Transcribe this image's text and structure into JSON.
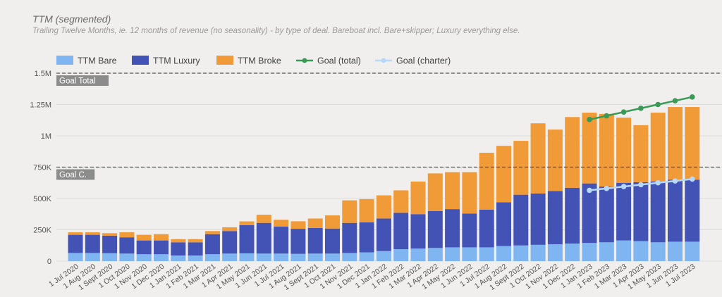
{
  "chart_data": {
    "type": "bar",
    "stacked": true,
    "title": "TTM (segmented)",
    "subtitle": "Trailing Twelve Months, ie. 12 months of revenue (no seasonality) - by type of deal. Bareboat incl. Bare+skipper; Luxury everything else.",
    "ylim": [
      0,
      1500000
    ],
    "yticks": [
      {
        "value": 0,
        "label": "0"
      },
      {
        "value": 250000,
        "label": "250K"
      },
      {
        "value": 500000,
        "label": "500K"
      },
      {
        "value": 750000,
        "label": "750K"
      },
      {
        "value": 1000000,
        "label": "1M"
      },
      {
        "value": 1250000,
        "label": "1.25M"
      },
      {
        "value": 1500000,
        "label": "1.5M"
      }
    ],
    "categories": [
      "1 Jul 2020",
      "1 Aug 2020",
      "1 Sept 2020",
      "1 Oct 2020",
      "1 Nov 2020",
      "1 Dec 2020",
      "1 Jan 2021",
      "1 Feb 2021",
      "1 Mar 2021",
      "1 Apr 2021",
      "1 May 2021",
      "1 Jun 2021",
      "1 Jul 2021",
      "1 Aug 2021",
      "1 Sept 2021",
      "1 Oct 2021",
      "1 Nov 2021",
      "1 Dec 2021",
      "1 Jan 2022",
      "1 Feb 2022",
      "1 Mar 2022",
      "1 Apr 2022",
      "1 May 2022",
      "1 Jun 2022",
      "1 Jul 2022",
      "1 Aug 2022",
      "1 Sept 2022",
      "1 Oct 2022",
      "1 Nov 2022",
      "1 Dec 2022",
      "1 Jan 2023",
      "1 Feb 2023",
      "1 Mar 2023",
      "1 Apr 2023",
      "1 May 2023",
      "1 Jun 2023",
      "1 Jul 2023"
    ],
    "series": [
      {
        "name": "TTM Bare",
        "type": "bar",
        "color": "#7fb5f1",
        "values": [
          65000,
          65000,
          63000,
          60000,
          55000,
          55000,
          45000,
          45000,
          55000,
          60000,
          62000,
          60000,
          60000,
          58000,
          60000,
          60000,
          65000,
          70000,
          80000,
          95000,
          100000,
          105000,
          110000,
          110000,
          110000,
          120000,
          125000,
          130000,
          135000,
          140000,
          145000,
          150000,
          165000,
          160000,
          150000,
          155000,
          155000
        ]
      },
      {
        "name": "TTM Luxury",
        "type": "bar",
        "color": "#4252b5",
        "values": [
          145000,
          145000,
          140000,
          130000,
          110000,
          110000,
          105000,
          105000,
          160000,
          180000,
          225000,
          245000,
          215000,
          200000,
          205000,
          200000,
          240000,
          240000,
          260000,
          290000,
          275000,
          295000,
          305000,
          270000,
          300000,
          350000,
          405000,
          410000,
          425000,
          445000,
          475000,
          445000,
          460000,
          470000,
          485000,
          495000,
          495000
        ]
      },
      {
        "name": "TTM Broke",
        "type": "bar",
        "color": "#f19a38",
        "values": [
          20000,
          20000,
          20000,
          40000,
          45000,
          50000,
          25000,
          25000,
          25000,
          30000,
          30000,
          65000,
          55000,
          60000,
          75000,
          105000,
          180000,
          185000,
          185000,
          180000,
          260000,
          300000,
          295000,
          330000,
          455000,
          450000,
          430000,
          560000,
          490000,
          565000,
          565000,
          580000,
          520000,
          455000,
          550000,
          580000,
          580000
        ]
      },
      {
        "name": "Goal (total)",
        "type": "line",
        "color": "#3a9a55",
        "points": [
          {
            "x": "1 Jan 2023",
            "y": 1130000
          },
          {
            "x": "1 Feb 2023",
            "y": 1160000
          },
          {
            "x": "1 Mar 2023",
            "y": 1190000
          },
          {
            "x": "1 Apr 2023",
            "y": 1220000
          },
          {
            "x": "1 May 2023",
            "y": 1250000
          },
          {
            "x": "1 Jun 2023",
            "y": 1280000
          },
          {
            "x": "1 Jul 2023",
            "y": 1310000
          }
        ]
      },
      {
        "name": "Goal (charter)",
        "type": "line",
        "color": "#b7d8f8",
        "points": [
          {
            "x": "1 Jan 2023",
            "y": 565000
          },
          {
            "x": "1 Feb 2023",
            "y": 580000
          },
          {
            "x": "1 Mar 2023",
            "y": 595000
          },
          {
            "x": "1 Apr 2023",
            "y": 610000
          },
          {
            "x": "1 May 2023",
            "y": 625000
          },
          {
            "x": "1 Jun 2023",
            "y": 640000
          },
          {
            "x": "1 Jul 2023",
            "y": 655000
          }
        ]
      }
    ],
    "reference_lines": [
      {
        "label": "Goal Total",
        "value": 1500000
      },
      {
        "label": "Goal C.",
        "value": 750000
      }
    ],
    "legend": "top-left"
  }
}
